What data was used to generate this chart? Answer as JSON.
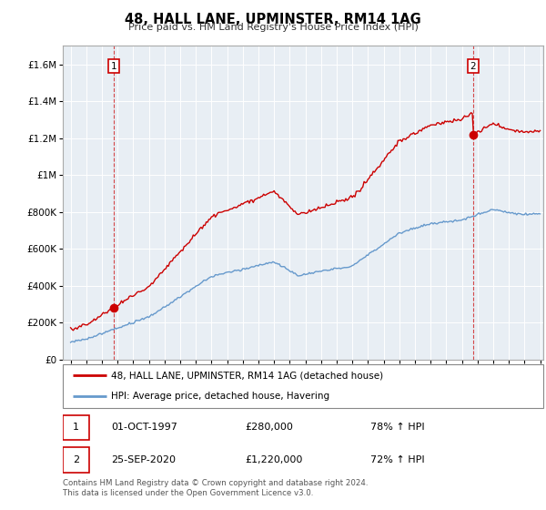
{
  "title": "48, HALL LANE, UPMINSTER, RM14 1AG",
  "subtitle": "Price paid vs. HM Land Registry's House Price Index (HPI)",
  "legend_line1": "48, HALL LANE, UPMINSTER, RM14 1AG (detached house)",
  "legend_line2": "HPI: Average price, detached house, Havering",
  "footnote": "Contains HM Land Registry data © Crown copyright and database right 2024.\nThis data is licensed under the Open Government Licence v3.0.",
  "annotation1_label": "1",
  "annotation1_date": "01-OCT-1997",
  "annotation1_price": "£280,000",
  "annotation1_hpi": "78% ↑ HPI",
  "annotation2_label": "2",
  "annotation2_date": "25-SEP-2020",
  "annotation2_price": "£1,220,000",
  "annotation2_hpi": "72% ↑ HPI",
  "red_color": "#cc0000",
  "blue_color": "#6699cc",
  "bg_color": "#e8eef4",
  "ylim_max": 1700000,
  "xlim_min": 1994.5,
  "xlim_max": 2025.2,
  "sale1_year": 1997.75,
  "sale1_price": 280000,
  "sale2_year": 2020.71,
  "sale2_price": 1220000
}
